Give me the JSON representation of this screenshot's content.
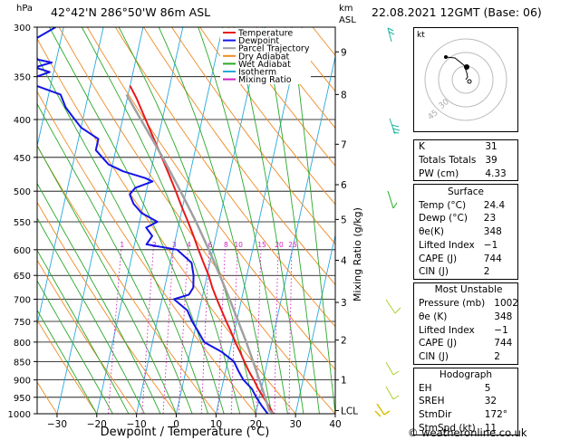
{
  "header": {
    "location": "42°42'N  286°50'W  86m  ASL",
    "datetime": "22.08.2021  12GMT  (Base: 06)",
    "units_hpa": "hPa",
    "units_km": "km",
    "units_asl": "ASL"
  },
  "footer": {
    "credit": "© weatheronline.co.uk"
  },
  "chart_data": {
    "type": "line",
    "title": "42°42'N  286°50'W  86m  ASL",
    "xlabel": "Dewpoint / Temperature (°C)",
    "ylabel": "hPa",
    "ylabel_right": "Mixing Ratio (g/kg)",
    "scale": "log-pressure, skew-T",
    "xlim": [
      -35,
      40
    ],
    "ylim": [
      1000,
      300
    ],
    "x_ticks": [
      "-30",
      "-20",
      "-10",
      "0",
      "10",
      "20",
      "30",
      "40"
    ],
    "pressure_ticks": [
      "300",
      "350",
      "400",
      "450",
      "500",
      "550",
      "600",
      "650",
      "700",
      "750",
      "800",
      "850",
      "900",
      "950",
      "1000"
    ],
    "km_ticks": [
      {
        "p": 324,
        "label": "9"
      },
      {
        "p": 370,
        "label": "8"
      },
      {
        "p": 432,
        "label": "7"
      },
      {
        "p": 490,
        "label": "6"
      },
      {
        "p": 546,
        "label": "5"
      },
      {
        "p": 620,
        "label": "4"
      },
      {
        "p": 707,
        "label": "3"
      },
      {
        "p": 795,
        "label": "2"
      },
      {
        "p": 900,
        "label": "1"
      },
      {
        "p": 990,
        "label": "LCL"
      }
    ],
    "mixing_ratio_labels": [
      "1",
      "2",
      "3",
      "4",
      "6",
      "8",
      "10",
      "15",
      "20",
      "25"
    ],
    "legend": [
      {
        "name": "Temperature",
        "color": "#e8191b"
      },
      {
        "name": "Dewpoint",
        "color": "#1414e6"
      },
      {
        "name": "Parcel Trajectory",
        "color": "#a0a0a0"
      },
      {
        "name": "Dry Adiabat",
        "color": "#f08a24"
      },
      {
        "name": "Wet Adiabat",
        "color": "#2aa82a"
      },
      {
        "name": "Isotherm",
        "color": "#28a8dc"
      },
      {
        "name": "Mixing Ratio",
        "color": "#d020c0"
      }
    ],
    "series": [
      {
        "name": "Temperature",
        "points": [
          [
            1000,
            24.4
          ],
          [
            975,
            22.8
          ],
          [
            950,
            21.0
          ],
          [
            925,
            19.2
          ],
          [
            900,
            17.6
          ],
          [
            875,
            15.8
          ],
          [
            850,
            14.2
          ],
          [
            825,
            12.6
          ],
          [
            800,
            10.8
          ],
          [
            775,
            9.2
          ],
          [
            750,
            7.4
          ],
          [
            725,
            5.6
          ],
          [
            700,
            3.8
          ],
          [
            675,
            2.0
          ],
          [
            650,
            0.4
          ],
          [
            625,
            -1.6
          ],
          [
            600,
            -3.6
          ],
          [
            575,
            -5.6
          ],
          [
            550,
            -7.8
          ],
          [
            525,
            -10.2
          ],
          [
            500,
            -12.6
          ],
          [
            475,
            -15.2
          ],
          [
            450,
            -18.0
          ],
          [
            425,
            -21.0
          ],
          [
            400,
            -24.2
          ],
          [
            375,
            -27.6
          ],
          [
            360,
            -30.0
          ]
        ]
      },
      {
        "name": "Dewpoint",
        "points": [
          [
            1000,
            23.0
          ],
          [
            975,
            21.0
          ],
          [
            950,
            19.2
          ],
          [
            925,
            17.6
          ],
          [
            900,
            15.0
          ],
          [
            875,
            13.2
          ],
          [
            850,
            11.6
          ],
          [
            825,
            8.0
          ],
          [
            800,
            3.0
          ],
          [
            775,
            1.0
          ],
          [
            750,
            -1.2
          ],
          [
            725,
            -3.0
          ],
          [
            700,
            -7.0
          ],
          [
            690,
            -3.5
          ],
          [
            675,
            -2.8
          ],
          [
            650,
            -3.4
          ],
          [
            625,
            -4.6
          ],
          [
            600,
            -9.0
          ],
          [
            590,
            -17.0
          ],
          [
            575,
            -16.0
          ],
          [
            560,
            -18.0
          ],
          [
            550,
            -15.5
          ],
          [
            535,
            -20.0
          ],
          [
            520,
            -22.5
          ],
          [
            505,
            -24.0
          ],
          [
            495,
            -23.0
          ],
          [
            485,
            -19.0
          ],
          [
            480,
            -21.0
          ],
          [
            470,
            -27.0
          ],
          [
            460,
            -31.0
          ],
          [
            450,
            -33.0
          ],
          [
            440,
            -35.0
          ],
          [
            425,
            -35.0
          ],
          [
            410,
            -40.0
          ],
          [
            395,
            -43.0
          ],
          [
            385,
            -45.0
          ],
          [
            370,
            -47.0
          ],
          [
            355,
            -57.0
          ],
          [
            345,
            -51.0
          ],
          [
            340,
            -55.0
          ],
          [
            335,
            -51.0
          ],
          [
            330,
            -57.0
          ],
          [
            320,
            -58.0
          ],
          [
            310,
            -56.0
          ],
          [
            300,
            -52.0
          ]
        ]
      },
      {
        "name": "Parcel Trajectory",
        "points": [
          [
            1000,
            24.4
          ],
          [
            990,
            23.2
          ],
          [
            950,
            21.4
          ],
          [
            900,
            19.0
          ],
          [
            850,
            16.4
          ],
          [
            800,
            13.6
          ],
          [
            750,
            10.4
          ],
          [
            700,
            7.0
          ],
          [
            650,
            3.2
          ],
          [
            600,
            -1.0
          ],
          [
            550,
            -5.8
          ],
          [
            500,
            -11.4
          ],
          [
            450,
            -17.8
          ],
          [
            400,
            -25.4
          ],
          [
            370,
            -30.4
          ]
        ]
      }
    ]
  },
  "hodograph": {
    "label": "kt",
    "ring_labels": [
      "30",
      "45"
    ]
  },
  "indices": {
    "k_label": "K",
    "k": "31",
    "tt_label": "Totals Totals",
    "tt": "39",
    "pw_label": "PW (cm)",
    "pw": "4.33"
  },
  "surface": {
    "title": "Surface",
    "temp_label": "Temp (°C)",
    "temp": "24.4",
    "dewp_label": "Dewp (°C)",
    "dewp": "23",
    "theta_label": "θe(K)",
    "theta": "348",
    "li_label": "Lifted Index",
    "li": "−1",
    "cape_label": "CAPE (J)",
    "cape": "744",
    "cin_label": "CIN (J)",
    "cin": "2"
  },
  "most_unstable": {
    "title": "Most Unstable",
    "pres_label": "Pressure (mb)",
    "pres": "1002",
    "theta_label": "θe (K)",
    "theta": "348",
    "li_label": "Lifted Index",
    "li": "−1",
    "cape_label": "CAPE (J)",
    "cape": "744",
    "cin_label": "CIN (J)",
    "cin": "2"
  },
  "hodo_indices": {
    "title": "Hodograph",
    "eh_label": "EH",
    "eh": "5",
    "sreh_label": "SREH",
    "sreh": "32",
    "dir_label": "StmDir",
    "dir": "172°",
    "spd_label": "StmSpd (kt)",
    "spd": "11"
  }
}
